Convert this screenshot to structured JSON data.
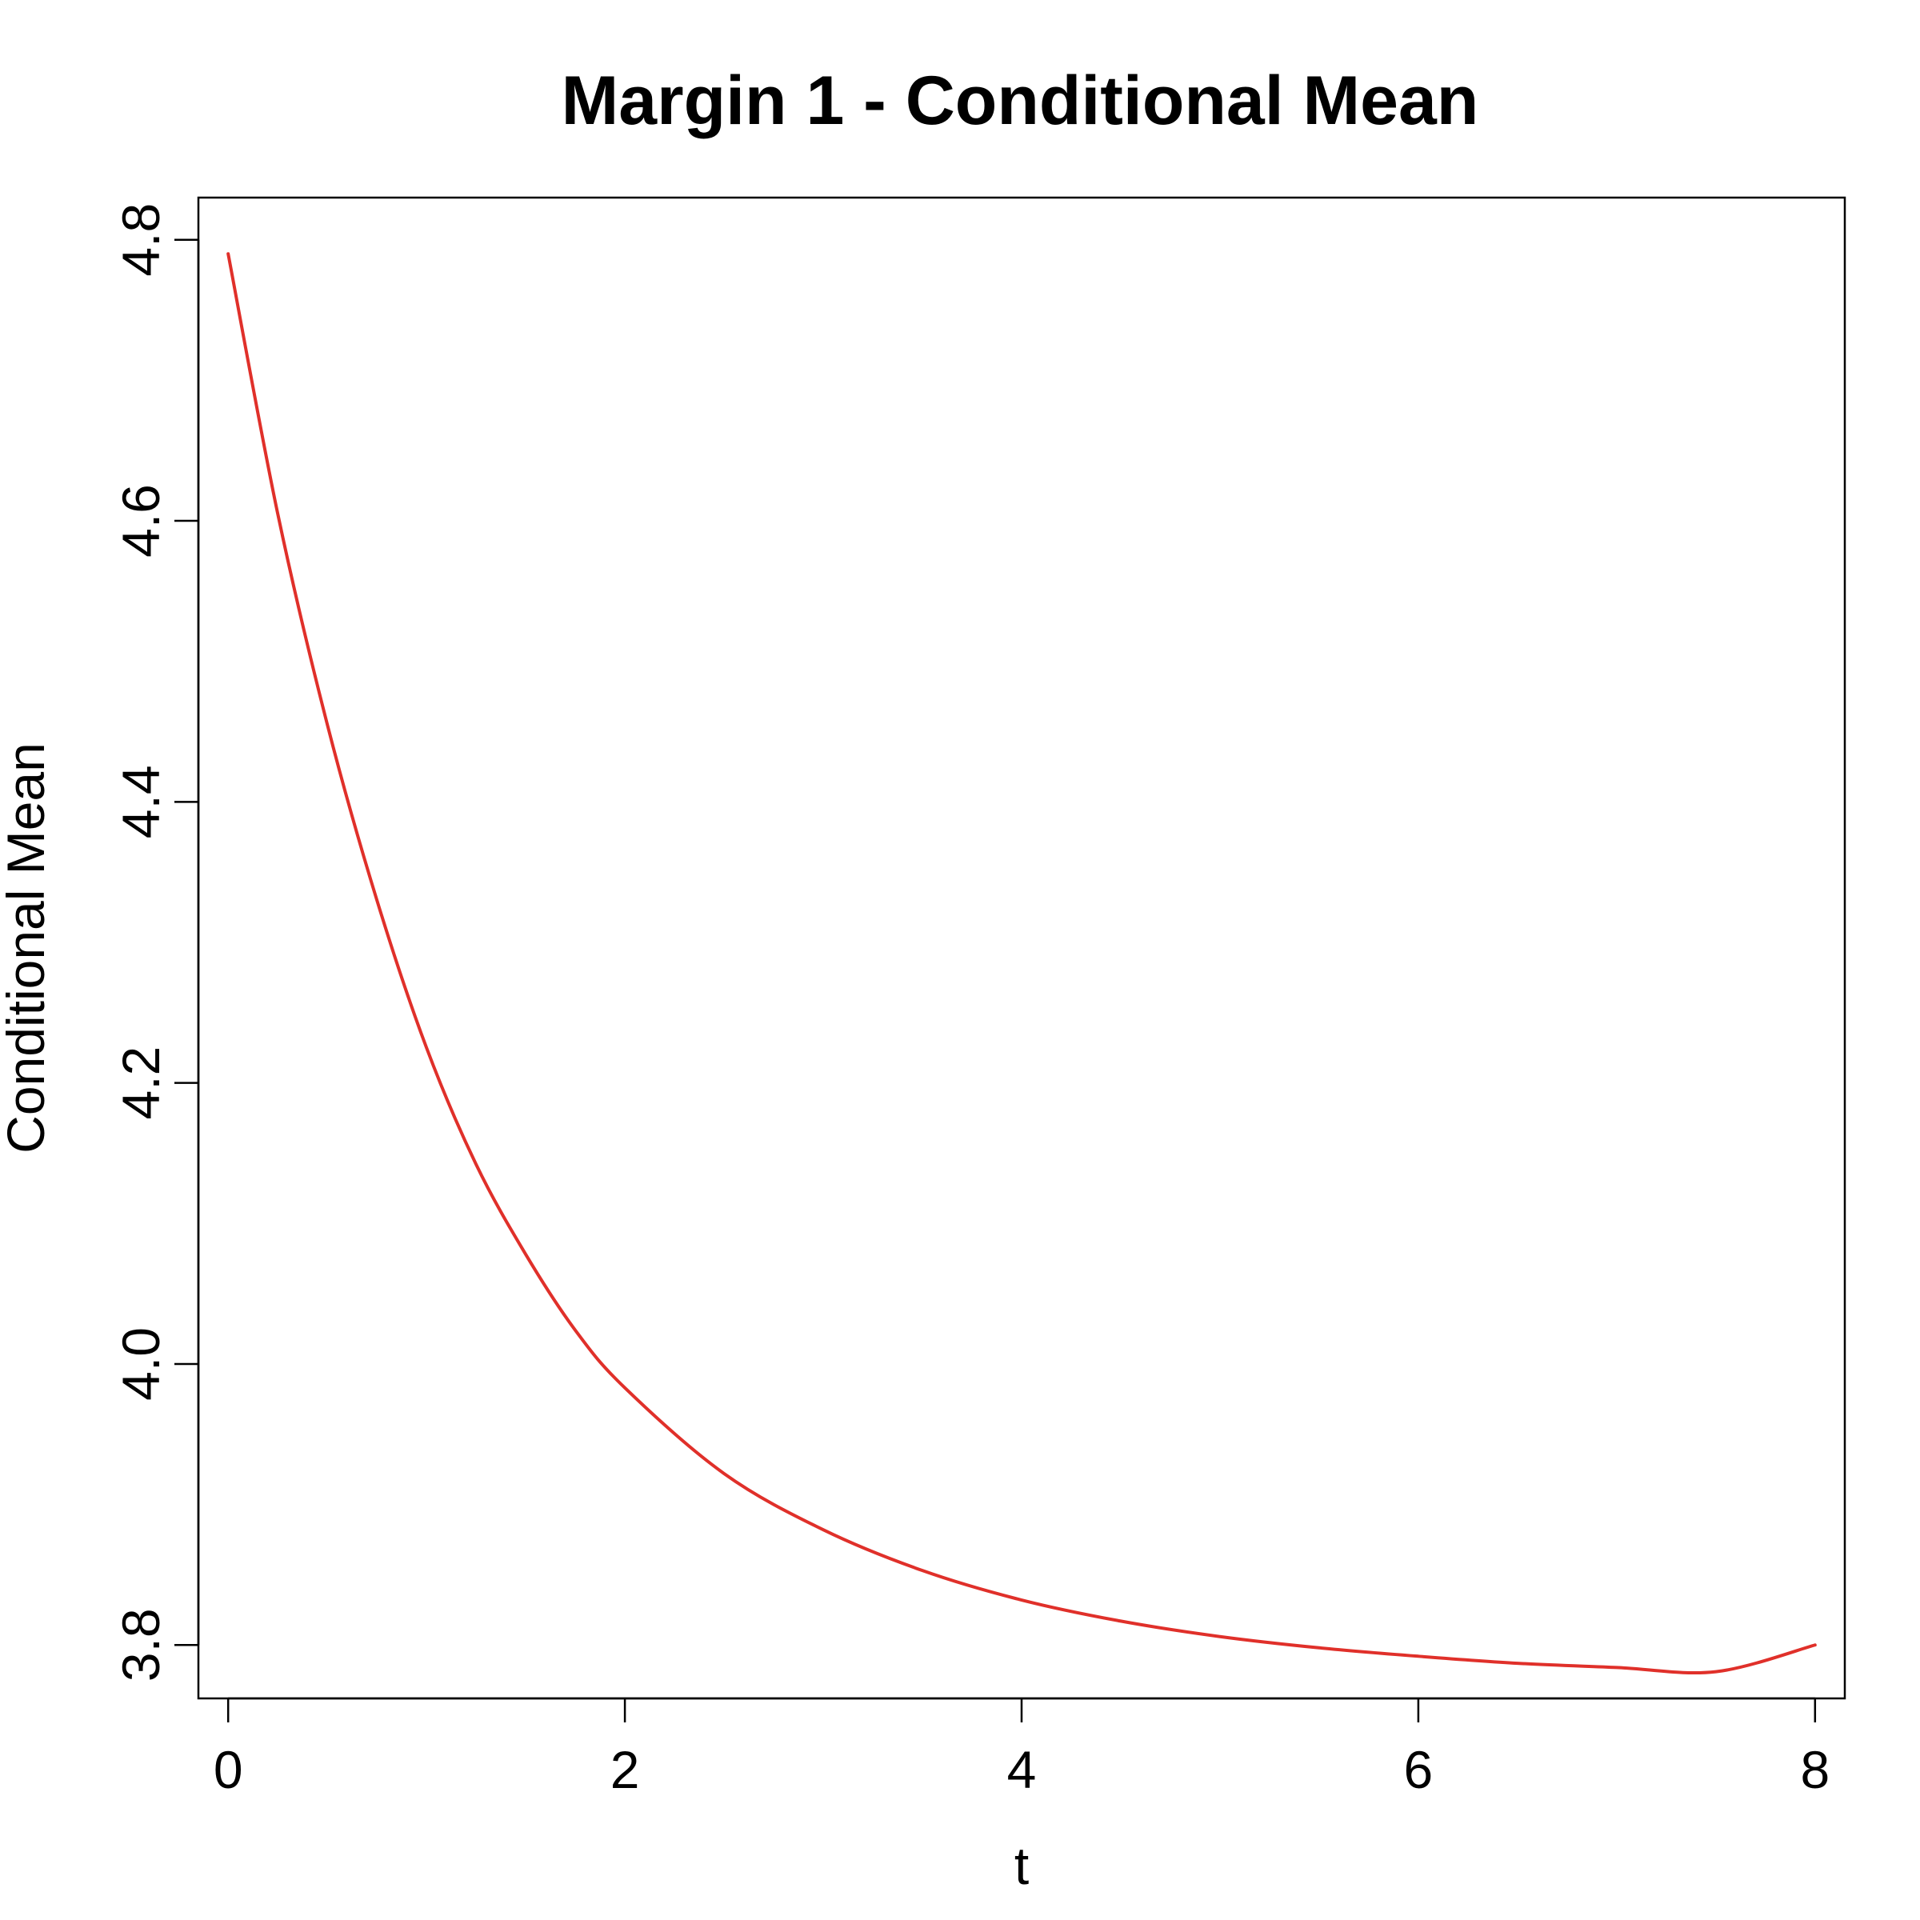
{
  "chart_data": {
    "type": "line",
    "title": "Margin 1 - Conditional Mean",
    "xlabel": "t",
    "ylabel": "Conditional Mean",
    "xlim": [
      -0.15,
      8.15
    ],
    "ylim": [
      3.762,
      4.83
    ],
    "x_ticks": [
      0,
      2,
      4,
      6,
      8
    ],
    "y_ticks": [
      3.8,
      4.0,
      4.2,
      4.4,
      4.6,
      4.8
    ],
    "x_tick_labels": [
      "0",
      "2",
      "4",
      "6",
      "8"
    ],
    "y_tick_labels": [
      "3.8",
      "4.0",
      "4.2",
      "4.4",
      "4.6",
      "4.8"
    ],
    "grid": false,
    "legend": "none",
    "series": [
      {
        "color": "#e0302a",
        "x": [
          0,
          0.25,
          0.5,
          0.75,
          1.0,
          1.25,
          1.5,
          1.75,
          2.0,
          2.5,
          3.0,
          3.5,
          4.0,
          4.5,
          5.0,
          5.5,
          6.0,
          6.5,
          7.0,
          7.5,
          8.0
        ],
        "y": [
          4.79,
          4.605,
          4.455,
          4.33,
          4.225,
          4.142,
          4.078,
          4.024,
          3.983,
          3.922,
          3.882,
          3.853,
          3.832,
          3.817,
          3.806,
          3.798,
          3.792,
          3.787,
          3.784,
          3.781,
          3.8
        ]
      }
    ]
  }
}
